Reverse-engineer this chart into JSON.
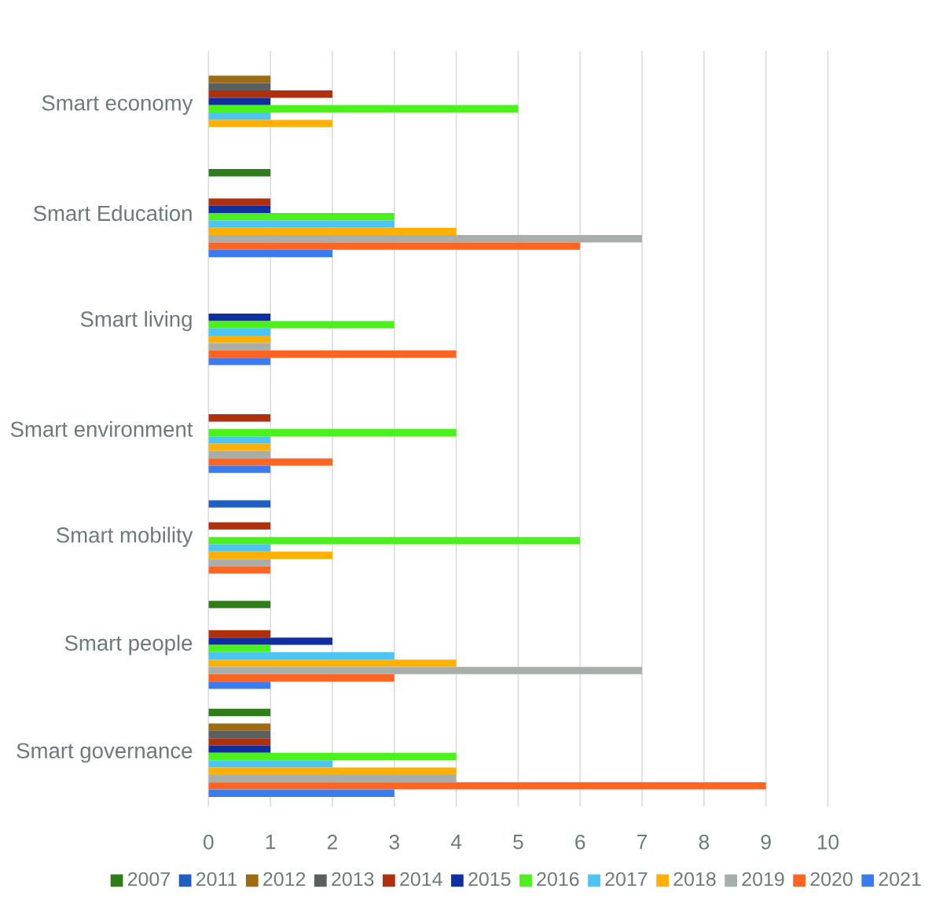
{
  "chart_data": {
    "type": "bar",
    "orientation": "horizontal",
    "categories": [
      "Smart economy",
      "Smart Education",
      "Smart living",
      "Smart environment",
      "Smart mobility",
      "Smart people",
      "Smart governance"
    ],
    "series": [
      {
        "name": "2007",
        "color": "#2e7d1a",
        "values": [
          null,
          1,
          null,
          null,
          null,
          1,
          1
        ]
      },
      {
        "name": "2011",
        "color": "#1f5fc4",
        "values": [
          null,
          null,
          null,
          null,
          1,
          null,
          null
        ]
      },
      {
        "name": "2012",
        "color": "#9c6b12",
        "values": [
          1,
          null,
          null,
          null,
          null,
          null,
          1
        ]
      },
      {
        "name": "2013",
        "color": "#5a6060",
        "values": [
          1,
          null,
          null,
          null,
          null,
          null,
          1
        ]
      },
      {
        "name": "2014",
        "color": "#b0300e",
        "values": [
          2,
          1,
          null,
          1,
          1,
          1,
          1
        ]
      },
      {
        "name": "2015",
        "color": "#0f2ea0",
        "values": [
          1,
          1,
          1,
          null,
          null,
          2,
          1
        ]
      },
      {
        "name": "2016",
        "color": "#4cf01c",
        "values": [
          5,
          3,
          3,
          4,
          6,
          1,
          4
        ]
      },
      {
        "name": "2017",
        "color": "#4cc4f4",
        "values": [
          1,
          3,
          1,
          1,
          1,
          3,
          2
        ]
      },
      {
        "name": "2018",
        "color": "#ffb000",
        "values": [
          2,
          4,
          1,
          1,
          2,
          4,
          4
        ]
      },
      {
        "name": "2019",
        "color": "#a8aeaa",
        "values": [
          null,
          7,
          1,
          1,
          1,
          7,
          4
        ]
      },
      {
        "name": "2020",
        "color": "#ff6420",
        "values": [
          null,
          6,
          4,
          2,
          1,
          3,
          9
        ]
      },
      {
        "name": "2021",
        "color": "#3a7cf0",
        "values": [
          null,
          2,
          1,
          1,
          null,
          1,
          3
        ]
      }
    ],
    "xlim": [
      0,
      10
    ],
    "xticks": [
      0,
      1,
      2,
      3,
      4,
      5,
      6,
      7,
      8,
      9,
      10
    ],
    "grid": "x",
    "legend": "bottom"
  }
}
